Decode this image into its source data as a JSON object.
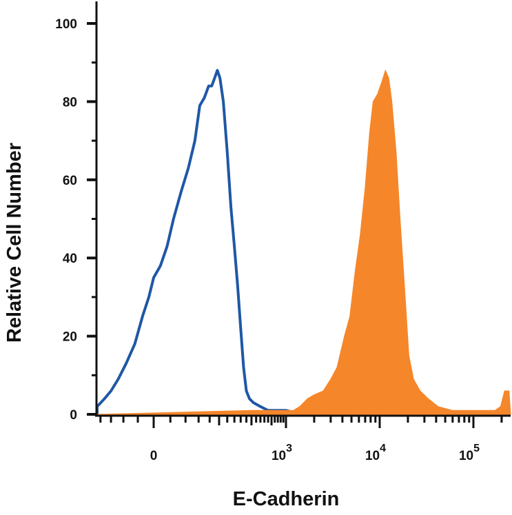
{
  "chart_data": {
    "type": "area",
    "title": "",
    "xlabel": "E-Cadherin",
    "ylabel": "Relative Cell Number",
    "x_scale": "biexponential",
    "ylim": [
      0,
      100
    ],
    "y_ticks": [
      0,
      20,
      40,
      60,
      80,
      100
    ],
    "x_ticks": [
      {
        "value": 0,
        "base": "0",
        "exp": ""
      },
      {
        "value": 1000,
        "base": "10",
        "exp": "3"
      },
      {
        "value": 10000,
        "base": "10",
        "exp": "4"
      },
      {
        "value": 100000,
        "base": "10",
        "exp": "5"
      }
    ],
    "grid": false,
    "legend": "none",
    "series": [
      {
        "style": "outline",
        "color": "#1f57a5",
        "points": [
          [
            -300,
            0
          ],
          [
            -260,
            1
          ],
          [
            -220,
            2
          ],
          [
            -180,
            4
          ],
          [
            -150,
            6
          ],
          [
            -120,
            9
          ],
          [
            -90,
            13
          ],
          [
            -60,
            18
          ],
          [
            -35,
            25
          ],
          [
            -15,
            30
          ],
          [
            0,
            35
          ],
          [
            20,
            38
          ],
          [
            40,
            43
          ],
          [
            60,
            50
          ],
          [
            85,
            57
          ],
          [
            110,
            63
          ],
          [
            135,
            70
          ],
          [
            155,
            79
          ],
          [
            175,
            81
          ],
          [
            195,
            84
          ],
          [
            210,
            84
          ],
          [
            225,
            86
          ],
          [
            240,
            88
          ],
          [
            255,
            86
          ],
          [
            275,
            80
          ],
          [
            300,
            67
          ],
          [
            325,
            53
          ],
          [
            350,
            43
          ],
          [
            375,
            33
          ],
          [
            400,
            22
          ],
          [
            425,
            12
          ],
          [
            450,
            6
          ],
          [
            480,
            4
          ],
          [
            520,
            3
          ],
          [
            600,
            2
          ],
          [
            700,
            1
          ],
          [
            850,
            1
          ],
          [
            1000,
            1
          ],
          [
            1500,
            0
          ],
          [
            3000,
            0
          ],
          [
            10000,
            0
          ],
          [
            100000,
            0
          ],
          [
            250000,
            0
          ]
        ]
      },
      {
        "style": "filled",
        "color": "#f5862a",
        "points": [
          [
            -300,
            0
          ],
          [
            500,
            1
          ],
          [
            850,
            1
          ],
          [
            1000,
            1
          ],
          [
            1200,
            1
          ],
          [
            1400,
            2
          ],
          [
            1700,
            4
          ],
          [
            2000,
            5
          ],
          [
            2500,
            6
          ],
          [
            3000,
            9
          ],
          [
            3500,
            12
          ],
          [
            4200,
            20
          ],
          [
            4800,
            25
          ],
          [
            5500,
            37
          ],
          [
            6200,
            46
          ],
          [
            7000,
            58
          ],
          [
            7800,
            72
          ],
          [
            8500,
            80
          ],
          [
            9500,
            82
          ],
          [
            10500,
            85
          ],
          [
            11500,
            88
          ],
          [
            12500,
            86
          ],
          [
            13500,
            80
          ],
          [
            15000,
            67
          ],
          [
            16500,
            50
          ],
          [
            18500,
            32
          ],
          [
            20500,
            15
          ],
          [
            23000,
            9
          ],
          [
            27000,
            6
          ],
          [
            33000,
            4
          ],
          [
            42000,
            2
          ],
          [
            60000,
            1
          ],
          [
            100000,
            1
          ],
          [
            170000,
            1
          ],
          [
            195000,
            2
          ],
          [
            215000,
            6
          ],
          [
            240000,
            6
          ],
          [
            250000,
            0
          ]
        ]
      }
    ]
  }
}
